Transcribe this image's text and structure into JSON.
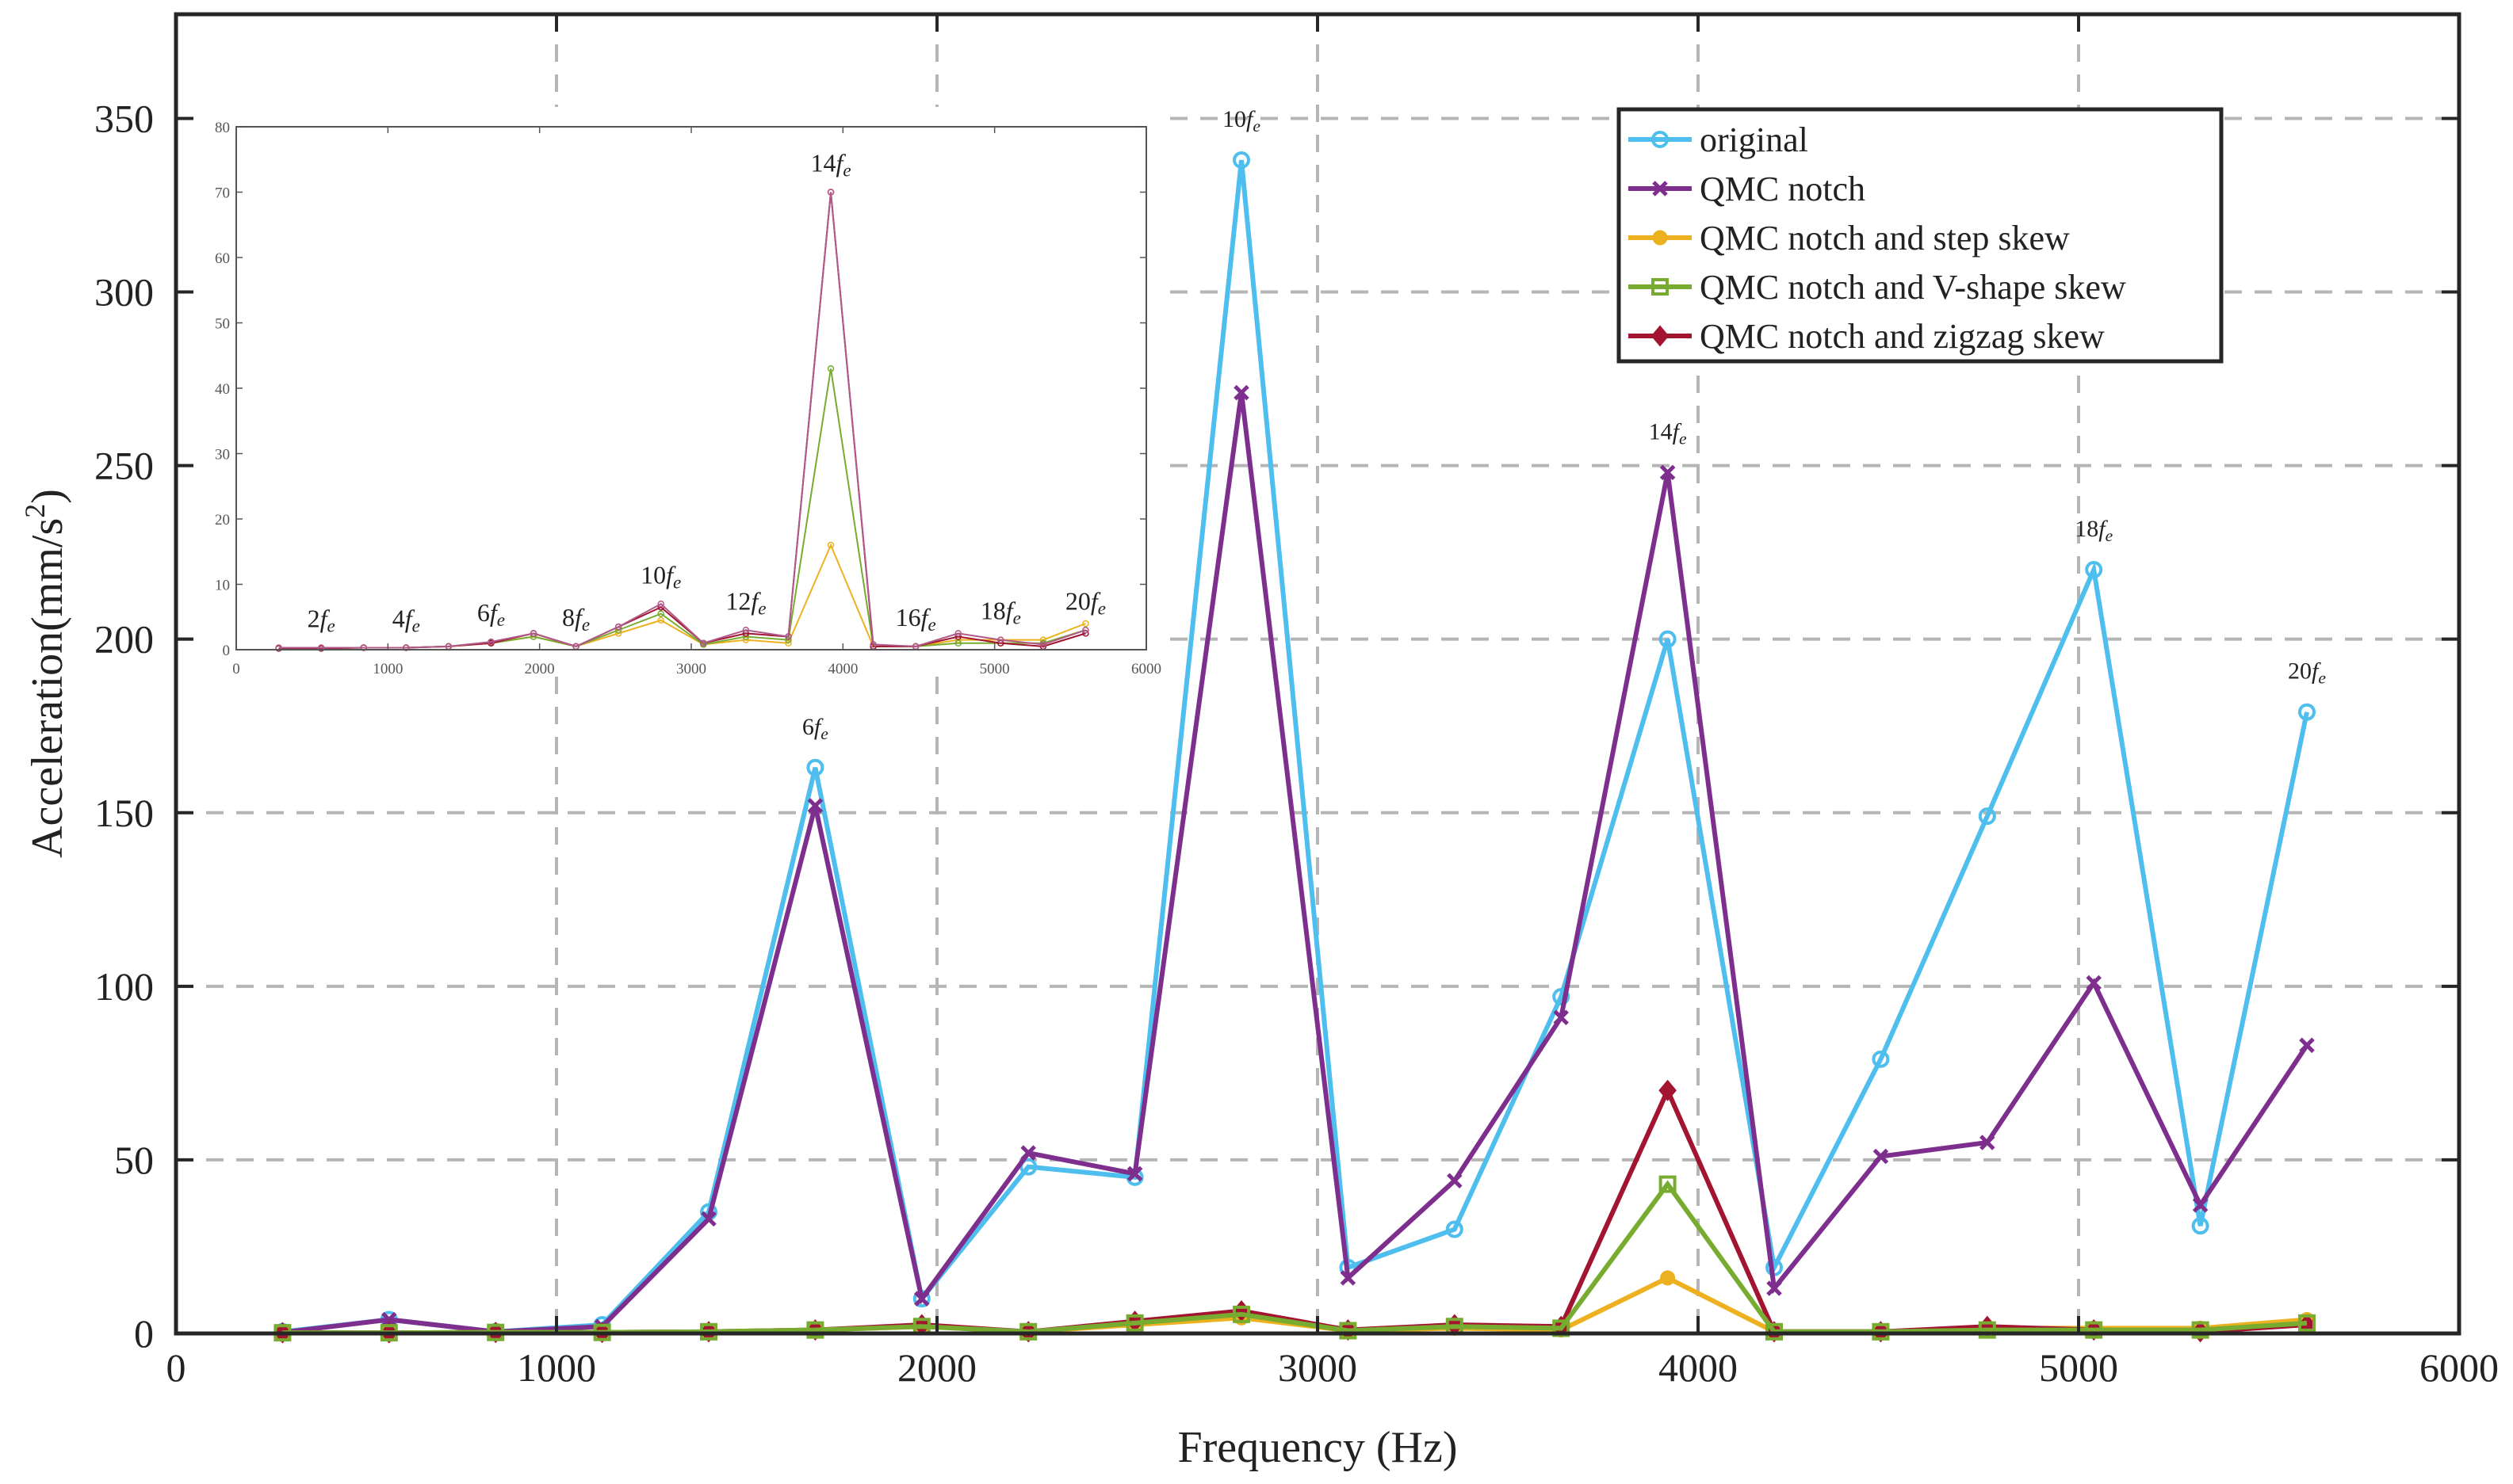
{
  "chart_data": [
    {
      "type": "line",
      "xlabel": "Frequency (Hz)",
      "ylabel_main": "Acceleration(mm/s",
      "ylabel_exp": "2",
      "ylabel_tail": ")",
      "xlim": [
        0,
        6000
      ],
      "ylim": [
        0,
        380
      ],
      "xticks": [
        0,
        1000,
        2000,
        3000,
        4000,
        5000,
        6000
      ],
      "yticks": [
        0,
        50,
        100,
        150,
        200,
        250,
        300,
        350
      ],
      "grid": true,
      "legend_position": "top-right",
      "x": [
        280,
        560,
        840,
        1120,
        1400,
        1680,
        1960,
        2240,
        2520,
        2800,
        3080,
        3360,
        3640,
        3920,
        4200,
        4480,
        4760,
        5040,
        5320,
        5600
      ],
      "series": [
        {
          "name": "original",
          "color": "#4dbeee",
          "marker": "circle",
          "values": [
            0.5,
            4,
            0.5,
            2.5,
            35,
            163,
            10,
            48,
            45,
            338,
            19,
            30,
            97,
            200,
            19,
            79,
            149,
            220,
            31,
            179
          ]
        },
        {
          "name": "QMC notch",
          "color": "#7e2f8e",
          "marker": "x",
          "values": [
            0.3,
            4,
            0.5,
            2,
            33,
            152,
            10,
            52,
            46,
            271,
            16,
            44,
            91,
            248,
            13,
            51,
            55,
            101,
            37,
            83
          ]
        },
        {
          "name": "QMC notch and step skew",
          "color": "#edb120",
          "marker": "dot",
          "values": [
            0.2,
            0.2,
            0.3,
            0.3,
            0.5,
            1,
            2,
            0.5,
            2.5,
            4.5,
            0.8,
            1.5,
            1,
            16,
            0.5,
            0.5,
            1.5,
            1.5,
            1.5,
            4
          ]
        },
        {
          "name": "QMC notch and V-shape skew",
          "color": "#77ac30",
          "marker": "square",
          "values": [
            0.2,
            0.2,
            0.3,
            0.3,
            0.5,
            1,
            2,
            0.5,
            3,
            5.5,
            0.8,
            2,
            1.5,
            43,
            0.5,
            0.5,
            1,
            1,
            1,
            3
          ]
        },
        {
          "name": "QMC notch and zigzag skew",
          "color": "#a2142f",
          "marker": "diamond",
          "values": [
            0.2,
            0.2,
            0.3,
            0.3,
            0.5,
            1,
            2.5,
            0.5,
            3.5,
            6.5,
            1,
            2.5,
            2,
            70,
            0.5,
            0.5,
            2,
            1,
            0.5,
            2.5
          ]
        }
      ],
      "harmonic_labels": [
        {
          "n": "6",
          "x": 1680,
          "y": 163
        },
        {
          "n": "10",
          "x": 2800,
          "y": 338
        },
        {
          "n": "14",
          "x": 3920,
          "y": 248
        },
        {
          "n": "18",
          "x": 5040,
          "y": 220
        },
        {
          "n": "20",
          "x": 5600,
          "y": 179
        }
      ]
    },
    {
      "type": "line",
      "title": "inset",
      "xlim": [
        0,
        6000
      ],
      "ylim": [
        0,
        80
      ],
      "xticks": [
        0,
        1000,
        2000,
        3000,
        4000,
        5000,
        6000
      ],
      "yticks": [
        0,
        10,
        20,
        30,
        40,
        50,
        60,
        70,
        80
      ],
      "x": [
        280,
        560,
        840,
        1120,
        1400,
        1680,
        1960,
        2240,
        2520,
        2800,
        3080,
        3360,
        3640,
        3920,
        4200,
        4480,
        4760,
        5040,
        5320,
        5600
      ],
      "series": [
        {
          "name": "QMC notch and step skew",
          "color": "#edb120",
          "values": [
            0.2,
            0.2,
            0.3,
            0.3,
            0.5,
            1,
            2,
            0.5,
            2.5,
            4.5,
            0.8,
            1.5,
            1,
            16,
            0.5,
            0.5,
            1.5,
            1.5,
            1.5,
            4
          ]
        },
        {
          "name": "QMC notch and V-shape skew",
          "color": "#77ac30",
          "values": [
            0.2,
            0.2,
            0.3,
            0.3,
            0.5,
            1,
            2,
            0.5,
            3,
            5.5,
            0.8,
            2,
            1.5,
            43,
            0.5,
            0.5,
            1,
            1,
            1,
            3
          ]
        },
        {
          "name": "QMC notch and zigzag skew",
          "color": "#a2142f",
          "values": [
            0.2,
            0.2,
            0.3,
            0.3,
            0.5,
            1,
            2.5,
            0.5,
            3.5,
            6.5,
            1,
            2.5,
            2,
            70,
            0.5,
            0.5,
            2,
            1,
            0.5,
            2.5
          ]
        },
        {
          "name": "QMC notch",
          "color": "#b05a8a",
          "values": [
            0.3,
            0.3,
            0.3,
            0.3,
            0.5,
            1.2,
            2.5,
            0.5,
            3.5,
            7,
            1,
            3,
            2,
            70,
            0.8,
            0.5,
            2.5,
            1.5,
            0.8,
            3
          ]
        }
      ],
      "harmonic_labels": [
        {
          "n": "2",
          "x": 560,
          "y": 0.3
        },
        {
          "n": "4",
          "x": 1120,
          "y": 0.3
        },
        {
          "n": "6",
          "x": 1680,
          "y": 1.2
        },
        {
          "n": "8",
          "x": 2240,
          "y": 0.5
        },
        {
          "n": "10",
          "x": 2800,
          "y": 7
        },
        {
          "n": "12",
          "x": 3360,
          "y": 3
        },
        {
          "n": "14",
          "x": 3920,
          "y": 70
        },
        {
          "n": "16",
          "x": 4480,
          "y": 0.5
        },
        {
          "n": "18",
          "x": 5040,
          "y": 1.5
        },
        {
          "n": "20",
          "x": 5600,
          "y": 3
        }
      ]
    }
  ],
  "harmonic_symbol": "f",
  "harmonic_subscript": "e"
}
